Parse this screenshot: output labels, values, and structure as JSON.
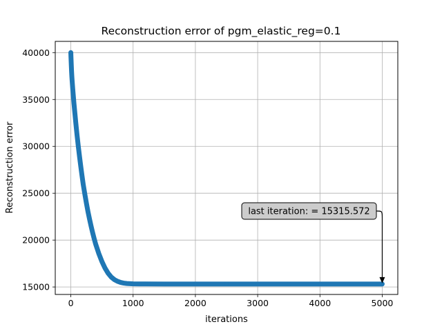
{
  "chart_data": {
    "type": "scatter",
    "title": "Reconstruction error of pgm_elastic_reg=0.1",
    "xlabel": "iterations",
    "ylabel": "Reconstruction error",
    "xlim": [
      -250,
      5250
    ],
    "ylim": [
      14200,
      41200
    ],
    "xticks": [
      0,
      1000,
      2000,
      3000,
      4000,
      5000
    ],
    "yticks": [
      15000,
      20000,
      25000,
      30000,
      35000,
      40000
    ],
    "grid": true,
    "series": [
      {
        "color": "#1f77b4",
        "marker": "circle",
        "points": [
          [
            0,
            40000
          ],
          [
            2,
            39600
          ],
          [
            5,
            39100
          ],
          [
            8,
            38600
          ],
          [
            12,
            38000
          ],
          [
            16,
            37500
          ],
          [
            20,
            37100
          ],
          [
            30,
            36200
          ],
          [
            40,
            35400
          ],
          [
            50,
            34600
          ],
          [
            60,
            33900
          ],
          [
            70,
            33200
          ],
          [
            80,
            32500
          ],
          [
            90,
            31850
          ],
          [
            100,
            31200
          ],
          [
            120,
            30000
          ],
          [
            140,
            28900
          ],
          [
            160,
            27850
          ],
          [
            180,
            26850
          ],
          [
            200,
            25900
          ],
          [
            225,
            24900
          ],
          [
            250,
            23950
          ],
          [
            275,
            23050
          ],
          [
            300,
            22250
          ],
          [
            325,
            21500
          ],
          [
            350,
            20800
          ],
          [
            375,
            20150
          ],
          [
            400,
            19550
          ],
          [
            450,
            18550
          ],
          [
            500,
            17700
          ],
          [
            550,
            17000
          ],
          [
            600,
            16450
          ],
          [
            650,
            16050
          ],
          [
            700,
            15780
          ],
          [
            750,
            15600
          ],
          [
            800,
            15480
          ],
          [
            850,
            15410
          ],
          [
            900,
            15370
          ],
          [
            1000,
            15335
          ],
          [
            1100,
            15322
          ],
          [
            1200,
            15318
          ],
          [
            1500,
            15316
          ],
          [
            2000,
            15316
          ],
          [
            2500,
            15316
          ],
          [
            3000,
            15316
          ],
          [
            3500,
            15316
          ],
          [
            4000,
            15316
          ],
          [
            4500,
            15316
          ],
          [
            5000,
            15315.572
          ]
        ]
      }
    ],
    "annotation": {
      "text": "last iteration: = 15315.572",
      "x": 5000,
      "y": 15315.572
    }
  }
}
